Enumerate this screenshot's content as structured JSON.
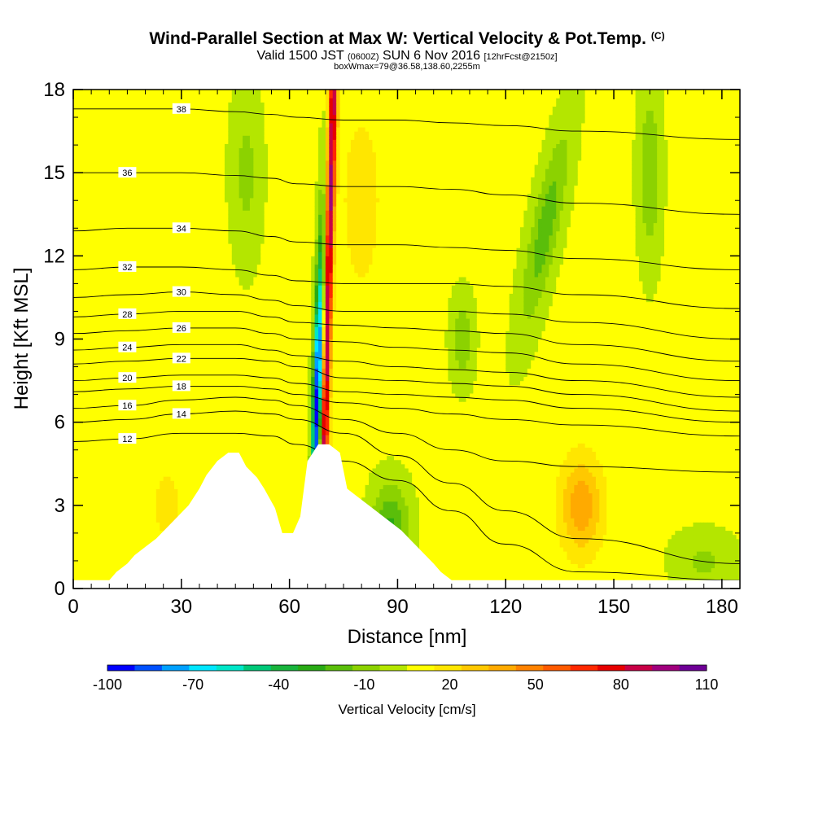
{
  "header": {
    "title": "Wind-Parallel Section at Max W: Vertical Velocity & Pot.Temp.",
    "copyright": "(C)",
    "valid_prefix": "Valid 1500 JST",
    "valid_utc": "(0600Z)",
    "valid_date": "SUN 6 Nov 2016",
    "forecast": "[12hrFcst@2150z]",
    "box_info": "boxWmax=79@36.58,138.60,2255m"
  },
  "chart_data": {
    "type": "heatmap",
    "xlabel": "Distance [nm]",
    "ylabel": "Height [Kft MSL]",
    "xlim": [
      0,
      185
    ],
    "ylim": [
      0,
      18
    ],
    "x_ticks": [
      0,
      30,
      60,
      90,
      120,
      150,
      180
    ],
    "y_ticks": [
      0,
      3,
      6,
      9,
      12,
      15,
      18
    ],
    "colorbar": {
      "label": "Vertical Velocity [cm/s]",
      "tick_labels": [
        "-100",
        "-70",
        "-40",
        "-10",
        "20",
        "50",
        "80",
        "110"
      ],
      "tick_values": [
        -100,
        -70,
        -40,
        -10,
        20,
        50,
        80,
        110
      ],
      "levels": [
        -100,
        -90,
        -80,
        -70,
        -60,
        -50,
        -40,
        -30,
        -20,
        -10,
        0,
        10,
        20,
        30,
        40,
        50,
        60,
        70,
        80,
        90,
        100,
        110
      ],
      "colors": [
        "#0000ff",
        "#0050ff",
        "#00a0ff",
        "#00e6ff",
        "#00e6c8",
        "#00c878",
        "#18b43c",
        "#28aa14",
        "#5abe0a",
        "#8cd200",
        "#b4e600",
        "#ffff00",
        "#ffe600",
        "#ffc800",
        "#ffaa00",
        "#ff8200",
        "#ff5a00",
        "#ff2800",
        "#e60000",
        "#c80046",
        "#a0007d",
        "#6e0096"
      ]
    },
    "terrain": [
      [
        0,
        0.3
      ],
      [
        10,
        0.3
      ],
      [
        12,
        0.6
      ],
      [
        15,
        0.9
      ],
      [
        17,
        1.2
      ],
      [
        20,
        1.5
      ],
      [
        23,
        1.8
      ],
      [
        26,
        2.2
      ],
      [
        29,
        2.6
      ],
      [
        32,
        3.0
      ],
      [
        35,
        3.6
      ],
      [
        37,
        4.1
      ],
      [
        40,
        4.6
      ],
      [
        43,
        4.9
      ],
      [
        46,
        4.9
      ],
      [
        48,
        4.4
      ],
      [
        51,
        4.0
      ],
      [
        53,
        3.6
      ],
      [
        56,
        2.9
      ],
      [
        58,
        2.0
      ],
      [
        61,
        2.0
      ],
      [
        63,
        2.6
      ],
      [
        65,
        4.6
      ],
      [
        68,
        5.2
      ],
      [
        71,
        5.2
      ],
      [
        74,
        4.9
      ],
      [
        76,
        3.6
      ],
      [
        79,
        3.3
      ],
      [
        82,
        3.0
      ],
      [
        85,
        2.7
      ],
      [
        88,
        2.4
      ],
      [
        91,
        2.1
      ],
      [
        94,
        1.7
      ],
      [
        97,
        1.3
      ],
      [
        100,
        0.9
      ],
      [
        102,
        0.6
      ],
      [
        105,
        0.3
      ],
      [
        185,
        0.3
      ]
    ],
    "theta_contours": [
      {
        "label": "12",
        "y": [
          5.3,
          5.4,
          5.6,
          5.6,
          5.5,
          5.2,
          4.6,
          3.9,
          2.8,
          1.6,
          0.6,
          0.3
        ]
      },
      {
        "label": "14",
        "y": [
          6.0,
          6.1,
          6.3,
          6.4,
          6.3,
          6.1,
          5.6,
          4.8,
          3.8,
          2.8,
          1.8,
          0.9
        ]
      },
      {
        "label": "16",
        "y": [
          6.5,
          6.6,
          6.8,
          6.9,
          6.8,
          6.6,
          6.1,
          5.6,
          5.0,
          4.6,
          4.4,
          4.2
        ]
      },
      {
        "label": "18",
        "y": [
          7.1,
          7.2,
          7.3,
          7.3,
          7.2,
          7.0,
          6.7,
          6.5,
          6.3,
          6.1,
          5.9,
          5.5
        ]
      },
      {
        "label": "20",
        "y": [
          7.5,
          7.6,
          7.7,
          7.7,
          7.6,
          7.4,
          7.1,
          7.0,
          6.9,
          6.8,
          6.5,
          6.0
        ]
      },
      {
        "label": "22",
        "y": [
          8.1,
          8.2,
          8.3,
          8.3,
          8.2,
          8.0,
          7.6,
          7.5,
          7.4,
          7.3,
          7.0,
          6.4
        ]
      },
      {
        "label": "24",
        "y": [
          8.6,
          8.7,
          8.8,
          8.8,
          8.6,
          8.4,
          8.2,
          8.0,
          7.9,
          7.8,
          7.5,
          6.9
        ]
      },
      {
        "label": "26",
        "y": [
          9.2,
          9.3,
          9.4,
          9.4,
          9.2,
          9.0,
          8.9,
          8.7,
          8.6,
          8.5,
          8.1,
          7.5
        ]
      },
      {
        "label": "28",
        "y": [
          9.8,
          9.9,
          10.0,
          10.0,
          9.8,
          9.6,
          9.5,
          9.4,
          9.3,
          9.2,
          8.8,
          8.2
        ]
      },
      {
        "label": "30",
        "y": [
          10.5,
          10.6,
          10.7,
          10.6,
          10.4,
          10.2,
          10.0,
          10.0,
          10.0,
          9.9,
          9.6,
          9.0
        ]
      },
      {
        "label": "32",
        "y": [
          11.5,
          11.6,
          11.6,
          11.5,
          11.3,
          11.1,
          11.0,
          11.0,
          11.0,
          10.9,
          10.6,
          10.1
        ]
      },
      {
        "label": "34",
        "y": [
          12.9,
          13.0,
          13.0,
          12.9,
          12.7,
          12.5,
          12.4,
          12.4,
          12.3,
          12.2,
          11.9,
          11.5
        ]
      },
      {
        "label": "36",
        "y": [
          15.0,
          15.0,
          15.0,
          14.9,
          14.8,
          14.6,
          14.5,
          14.5,
          14.4,
          14.2,
          13.9,
          13.5
        ]
      },
      {
        "label": "38",
        "y": [
          17.3,
          17.3,
          17.3,
          17.2,
          17.1,
          17.0,
          16.9,
          16.9,
          16.8,
          16.7,
          16.5,
          16.2
        ]
      }
    ],
    "theta_x": [
      0,
      15,
      30,
      45,
      55,
      62,
      75,
      90,
      105,
      120,
      140,
      185
    ]
  }
}
